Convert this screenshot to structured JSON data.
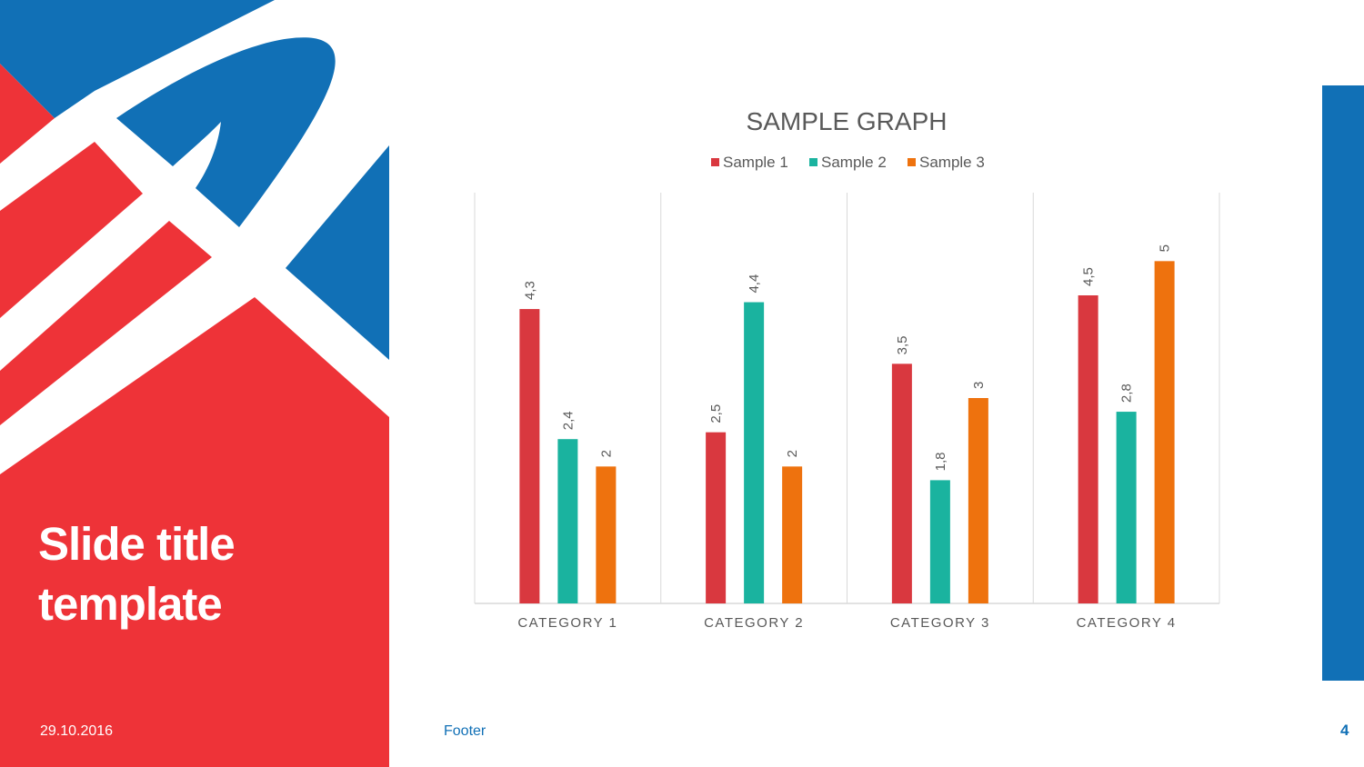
{
  "colors": {
    "brand_red": "#ee3338",
    "brand_blue": "#1170b6",
    "series_1": "#d9383f",
    "series_2": "#1ab39f",
    "series_3": "#ee720e",
    "text_grey": "#595959",
    "grid_grey": "#d9d9d9"
  },
  "slide": {
    "title_lines": [
      "Slide title",
      "template"
    ],
    "date": "29.10.2016",
    "footer": "Footer",
    "page_number": "4"
  },
  "chart_data": {
    "type": "bar",
    "title": "SAMPLE GRAPH",
    "categories": [
      "CATEGORY 1",
      "CATEGORY 2",
      "CATEGORY 3",
      "CATEGORY 4"
    ],
    "series": [
      {
        "name": "Sample 1",
        "values": [
          4.3,
          2.5,
          3.5,
          4.5
        ],
        "labels": [
          "4,3",
          "2,5",
          "3,5",
          "4,5"
        ]
      },
      {
        "name": "Sample 2",
        "values": [
          2.4,
          4.4,
          1.8,
          2.8
        ],
        "labels": [
          "2,4",
          "4,4",
          "1,8",
          "2,8"
        ]
      },
      {
        "name": "Sample 3",
        "values": [
          2,
          2,
          3,
          5
        ],
        "labels": [
          "2",
          "2",
          "3",
          "5"
        ]
      }
    ],
    "ylim": [
      0,
      6
    ],
    "legend_position": "top",
    "data_labels": "rotated vertical above bars",
    "vertical_category_separators": true
  }
}
